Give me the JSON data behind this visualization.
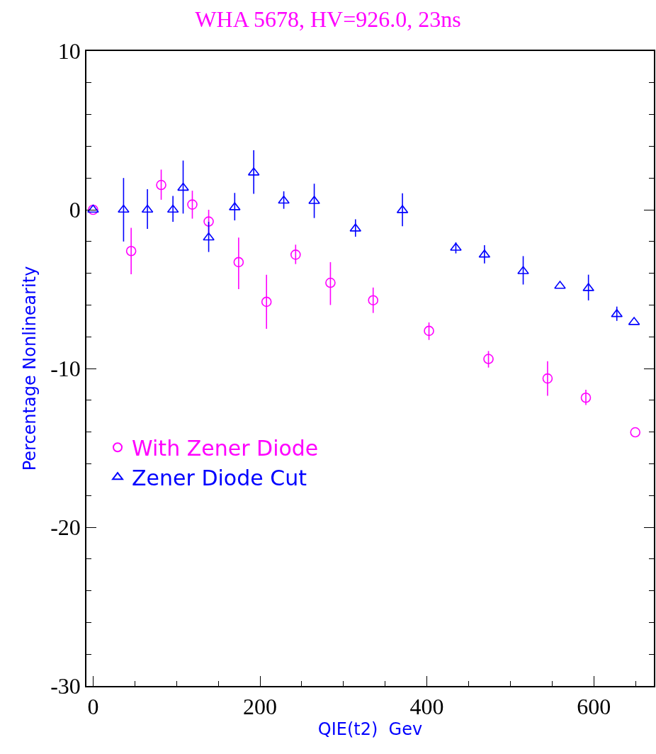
{
  "chart_data": {
    "type": "scatter",
    "title": "WHA 5678, HV=926.0, 23ns",
    "xlabel": "QIE(t2)  Gev",
    "ylabel": "Percentage Nonlinearity",
    "xlim": [
      -8,
      672
    ],
    "ylim": [
      -30,
      10
    ],
    "xticks": [
      0,
      {
        "value": 50,
        "label": null
      },
      {
        "value": 100,
        "label": null
      },
      {
        "value": 150,
        "label": null
      },
      200,
      {
        "value": 250,
        "label": null
      },
      {
        "value": 300,
        "label": null
      },
      {
        "value": 350,
        "label": null
      },
      400,
      {
        "value": 450,
        "label": null
      },
      {
        "value": 500,
        "label": null
      },
      {
        "value": 550,
        "label": null
      },
      600,
      {
        "value": 650,
        "label": null
      }
    ],
    "yticks": [
      -30,
      {
        "value": -28,
        "label": null
      },
      {
        "value": -26,
        "label": null
      },
      {
        "value": -24,
        "label": null
      },
      {
        "value": -22,
        "label": null
      },
      -20,
      {
        "value": -18,
        "label": null
      },
      {
        "value": -16,
        "label": null
      },
      {
        "value": -14,
        "label": null
      },
      {
        "value": -12,
        "label": null
      },
      -10,
      {
        "value": -8,
        "label": null
      },
      {
        "value": -6,
        "label": null
      },
      {
        "value": -4,
        "label": null
      },
      {
        "value": -2,
        "label": null
      },
      0,
      {
        "value": 2,
        "label": null
      },
      {
        "value": 4,
        "label": null
      },
      {
        "value": 6,
        "label": null
      },
      {
        "value": 8,
        "label": null
      },
      10
    ],
    "legend": "bottom left",
    "series": [
      {
        "name": "With Zener Diode",
        "color": "#ff00ff",
        "marker": "circle",
        "x": [
          0,
          45.6,
          81.6,
          118.9,
          138.5,
          174.4,
          207.8,
          242.7,
          284.4,
          335.6,
          402.5,
          473.8,
          544.6,
          590.5,
          649.7
        ],
        "values": [
          0,
          -2.6,
          1.56,
          0.33,
          -0.74,
          -3.3,
          -5.8,
          -2.83,
          -4.6,
          -5.7,
          -7.63,
          -9.4,
          -10.63,
          -11.84,
          -14.02
        ],
        "errors": [
          null,
          [
            -4.06,
            -1.14
          ],
          [
            0.63,
            2.53
          ],
          [
            -0.56,
            1.2
          ],
          [
            -1.5,
            0.0
          ],
          [
            -5.0,
            -1.75
          ],
          [
            -7.5,
            -4.1
          ],
          [
            -3.42,
            -2.2
          ],
          [
            -6.0,
            -3.3
          ],
          [
            -6.5,
            -4.9
          ],
          [
            -8.2,
            -7.1
          ],
          [
            -9.94,
            -8.9
          ],
          [
            -11.72,
            -9.54
          ],
          [
            -12.3,
            -11.34
          ],
          null
        ]
      },
      {
        "name": "Zener Diode Cut",
        "color": "#0000ff",
        "marker": "triangle",
        "x": [
          0,
          36.5,
          65.1,
          95.7,
          107.9,
          138.5,
          169.7,
          192.5,
          228.5,
          265,
          314.4,
          370.7,
          434.7,
          469,
          515.4,
          559.5,
          593.6,
          627.6,
          648.3
        ],
        "values": [
          0,
          0,
          0,
          0,
          1.38,
          -1.75,
          0.15,
          2.34,
          0.57,
          0.55,
          -1.19,
          -0.03,
          -2.4,
          -2.83,
          -3.87,
          -4.8,
          -4.94,
          -6.58,
          -7.08
        ],
        "errors": [
          null,
          [
            -2.0,
            2.0
          ],
          [
            -1.2,
            1.3
          ],
          [
            -0.76,
            0.87
          ],
          [
            -0.24,
            3.1
          ],
          [
            -2.66,
            -0.76
          ],
          [
            -0.67,
            1.06
          ],
          [
            1.0,
            3.75
          ],
          [
            0.06,
            1.16
          ],
          [
            -0.52,
            1.64
          ],
          [
            -1.7,
            -0.6
          ],
          [
            -1.04,
            1.04
          ],
          [
            -2.75,
            -2.05
          ],
          [
            -3.38,
            -2.23
          ],
          [
            -4.71,
            -2.92
          ],
          null,
          [
            -5.71,
            -4.09
          ],
          [
            -7.0,
            -6.1
          ],
          null
        ]
      }
    ]
  }
}
